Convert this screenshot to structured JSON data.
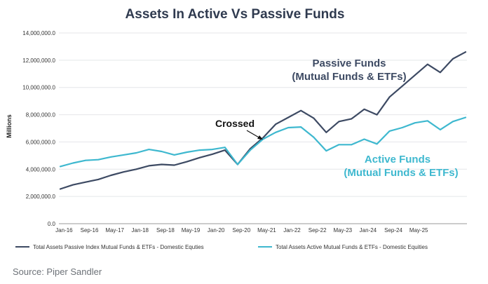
{
  "chart_data": {
    "type": "line",
    "title": "Assets In Active Vs Passive Funds",
    "xlabel": "",
    "ylabel": "Millions",
    "ylim": [
      0,
      14000000
    ],
    "yticks": [
      0,
      2000000,
      4000000,
      6000000,
      8000000,
      10000000,
      12000000,
      14000000
    ],
    "ytick_labels": [
      "0.0",
      "2,000,000.0",
      "4,000,000.0",
      "6,000,000.0",
      "8,000,000.0",
      "10,000,000.0",
      "12,000,000.0",
      "14,000,000.0"
    ],
    "x_start": "Jan-16",
    "x_step_months": 4,
    "xtick_labels": [
      "Jan-16",
      "Sep-16",
      "May-17",
      "Jan-18",
      "Sep-18",
      "May-19",
      "Jan-20",
      "Sep-20",
      "May-21",
      "Jan-22",
      "Sep-22",
      "May-23",
      "Jan-24",
      "Sep-24",
      "May-25"
    ],
    "series": [
      {
        "name": "Total Assets Passive Index Mutual Funds & ETFs - Domestic Equties",
        "color": "#3d4a63",
        "values": [
          2550000,
          2850000,
          3050000,
          3250000,
          3550000,
          3800000,
          4000000,
          4250000,
          4350000,
          4300000,
          4550000,
          4850000,
          5100000,
          5400000,
          4350000,
          5500000,
          6300000,
          7300000,
          7800000,
          8300000,
          7750000,
          6700000,
          7500000,
          7700000,
          8400000,
          8000000,
          9300000,
          10100000,
          10900000,
          11700000,
          11100000,
          12100000,
          12600000
        ]
      },
      {
        "name": "Total Assets Active Mutual Funds & ETFs - Domestic Equities",
        "color": "#3eb8cf",
        "values": [
          4200000,
          4450000,
          4650000,
          4700000,
          4900000,
          5050000,
          5200000,
          5450000,
          5300000,
          5050000,
          5250000,
          5400000,
          5450000,
          5600000,
          4350000,
          5400000,
          6200000,
          6700000,
          7050000,
          7100000,
          6350000,
          5350000,
          5800000,
          5800000,
          6200000,
          5850000,
          6800000,
          7050000,
          7400000,
          7550000,
          6900000,
          7500000,
          7800000
        ]
      }
    ],
    "annotations": {
      "passive_line1": "Passive Funds",
      "passive_line2": "(Mutual Funds & ETFs)",
      "active_line1": "Active Funds",
      "active_line2": "(Mutual Funds & ETFs)",
      "crossed": "Crossed"
    }
  },
  "source_text": "Source: Piper Sandler"
}
